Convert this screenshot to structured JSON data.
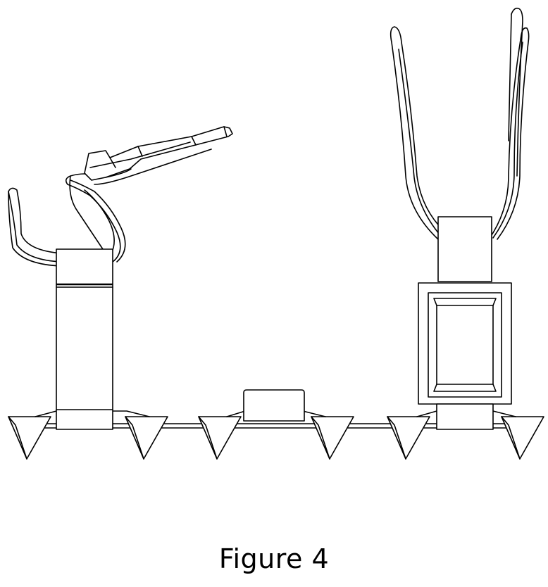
{
  "figure": {
    "caption": "Figure 4"
  }
}
